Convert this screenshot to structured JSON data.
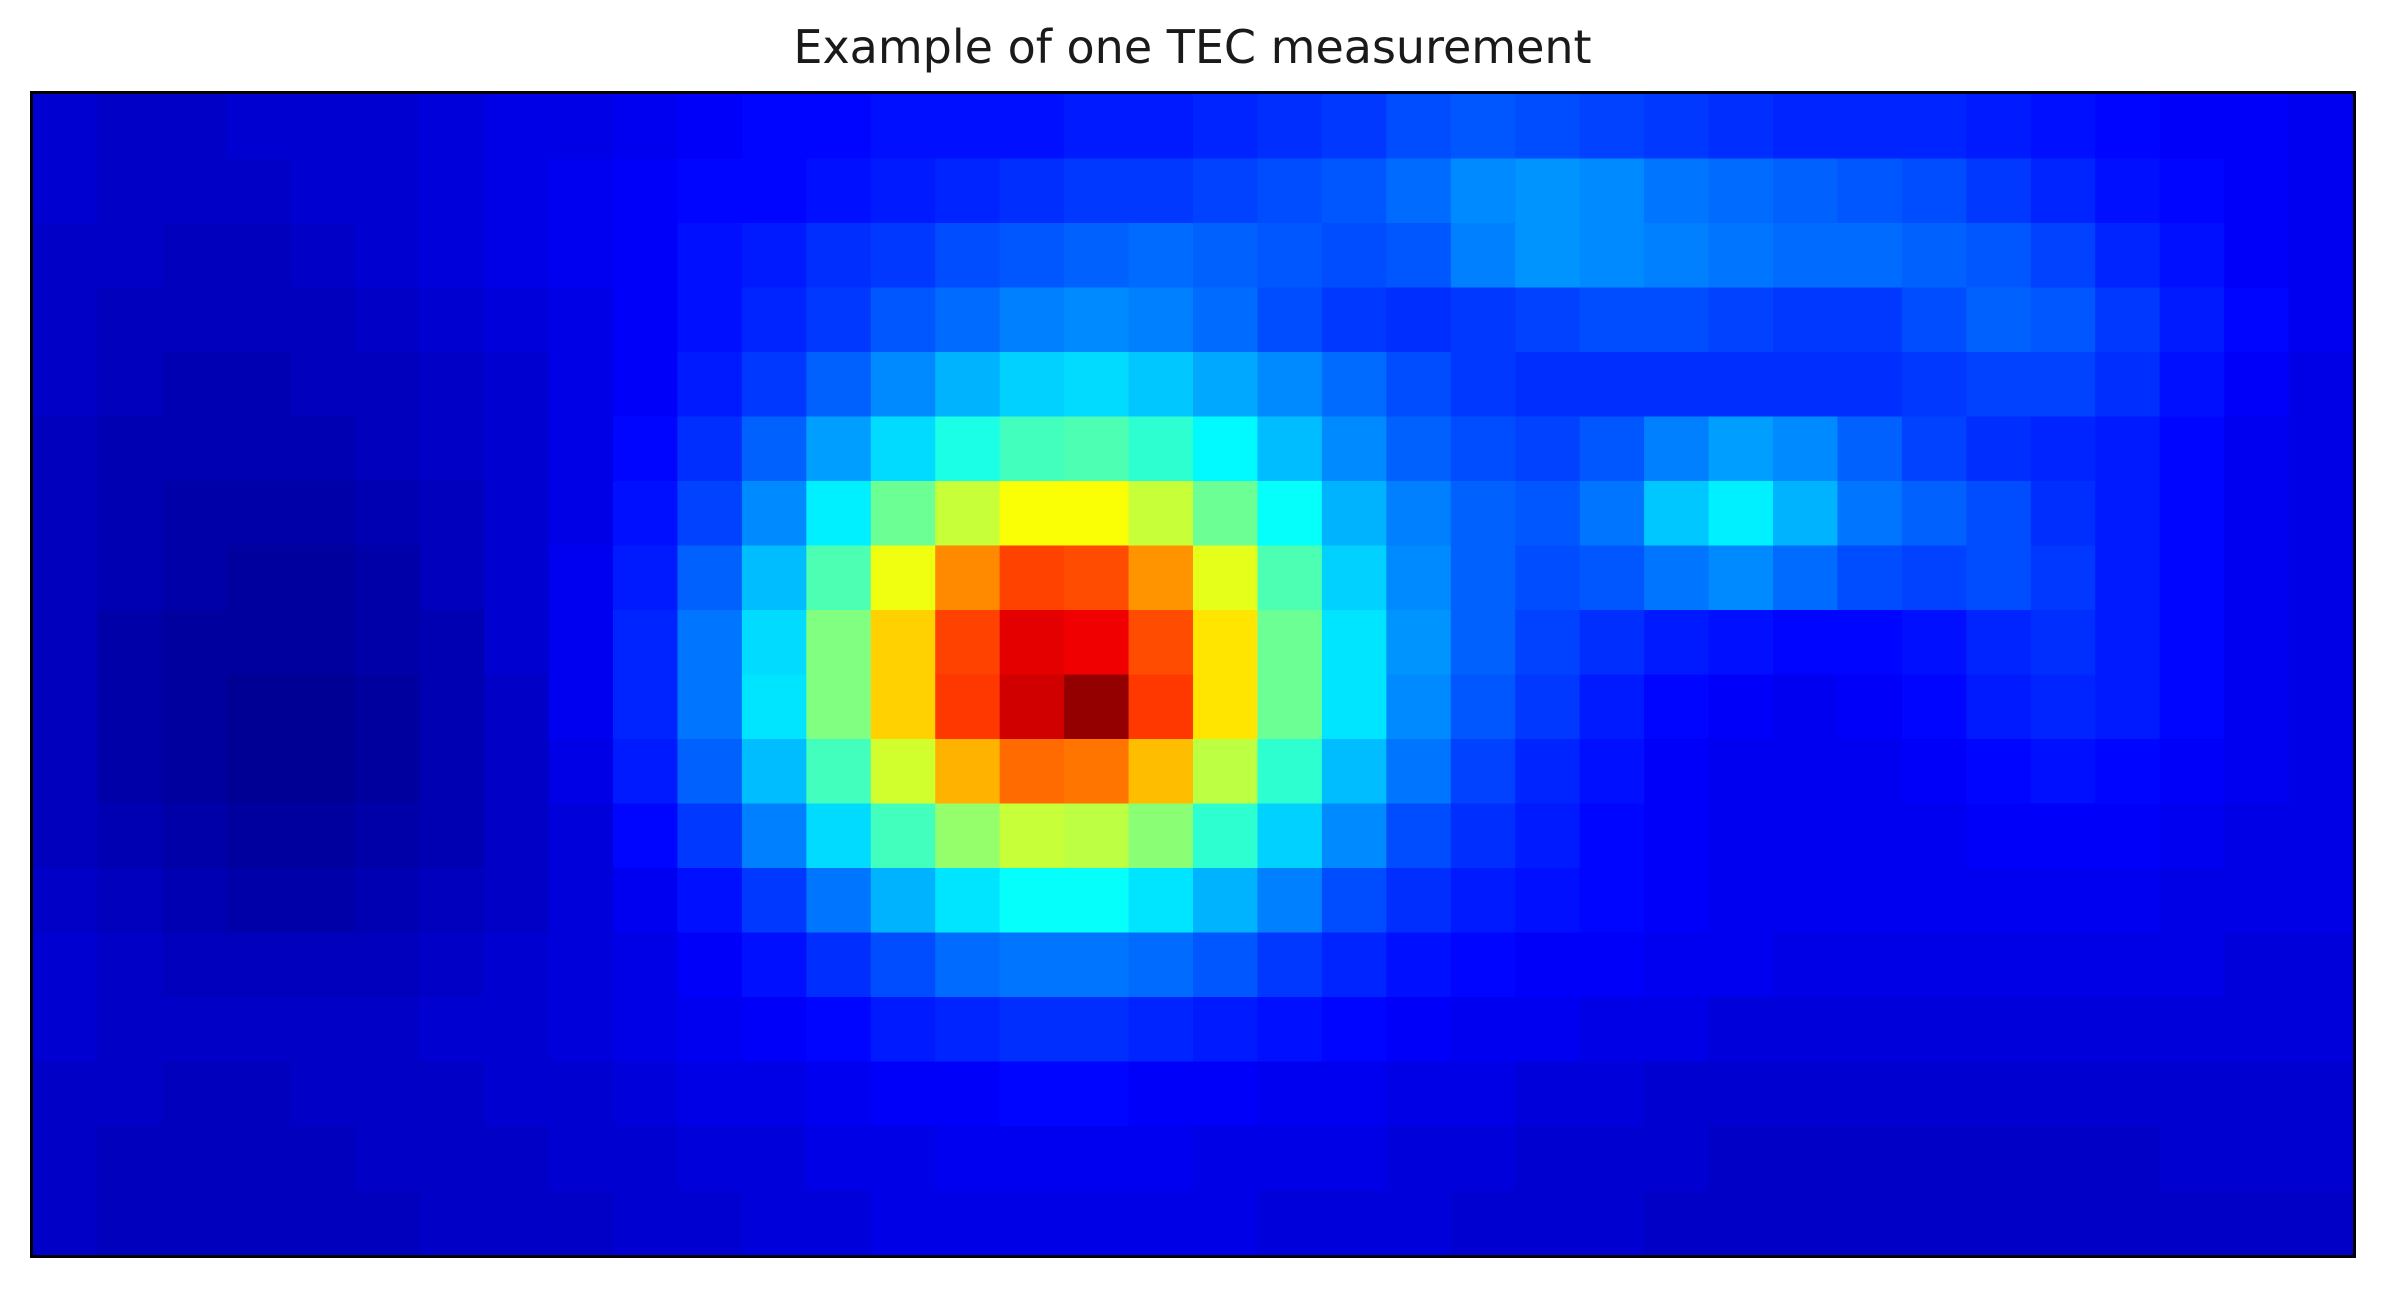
{
  "chart_data": {
    "type": "heatmap",
    "title": "Example of one TEC measurement",
    "xlabel": "",
    "ylabel": "",
    "axes_ticks": "none",
    "colorbar": "none",
    "colormap": "jet",
    "value_range": [
      0,
      1
    ],
    "grid": {
      "cols": 36,
      "rows": 18,
      "cells": [
        [
          0.08,
          0.07,
          0.07,
          0.08,
          0.08,
          0.08,
          0.09,
          0.1,
          0.1,
          0.11,
          0.12,
          0.13,
          0.13,
          0.14,
          0.14,
          0.14,
          0.15,
          0.15,
          0.16,
          0.17,
          0.18,
          0.2,
          0.21,
          0.2,
          0.19,
          0.18,
          0.17,
          0.16,
          0.16,
          0.16,
          0.15,
          0.14,
          0.13,
          0.12,
          0.12,
          0.11
        ],
        [
          0.08,
          0.07,
          0.07,
          0.07,
          0.08,
          0.08,
          0.09,
          0.1,
          0.11,
          0.12,
          0.13,
          0.13,
          0.14,
          0.15,
          0.16,
          0.17,
          0.18,
          0.18,
          0.19,
          0.2,
          0.21,
          0.23,
          0.26,
          0.27,
          0.26,
          0.24,
          0.23,
          0.22,
          0.21,
          0.2,
          0.18,
          0.16,
          0.14,
          0.13,
          0.12,
          0.11
        ],
        [
          0.07,
          0.07,
          0.06,
          0.06,
          0.07,
          0.08,
          0.09,
          0.1,
          0.11,
          0.12,
          0.14,
          0.15,
          0.17,
          0.18,
          0.2,
          0.21,
          0.22,
          0.23,
          0.22,
          0.21,
          0.2,
          0.21,
          0.25,
          0.27,
          0.26,
          0.25,
          0.24,
          0.23,
          0.23,
          0.22,
          0.21,
          0.19,
          0.16,
          0.14,
          0.12,
          0.11
        ],
        [
          0.07,
          0.06,
          0.06,
          0.06,
          0.06,
          0.07,
          0.08,
          0.09,
          0.1,
          0.12,
          0.14,
          0.16,
          0.18,
          0.21,
          0.23,
          0.25,
          0.26,
          0.25,
          0.23,
          0.2,
          0.18,
          0.17,
          0.18,
          0.19,
          0.2,
          0.2,
          0.19,
          0.18,
          0.18,
          0.2,
          0.22,
          0.21,
          0.18,
          0.15,
          0.13,
          0.11
        ],
        [
          0.07,
          0.06,
          0.05,
          0.05,
          0.06,
          0.06,
          0.07,
          0.08,
          0.1,
          0.12,
          0.15,
          0.18,
          0.22,
          0.26,
          0.3,
          0.33,
          0.34,
          0.32,
          0.29,
          0.26,
          0.23,
          0.2,
          0.18,
          0.17,
          0.17,
          0.17,
          0.17,
          0.17,
          0.17,
          0.18,
          0.19,
          0.19,
          0.17,
          0.14,
          0.12,
          0.1
        ],
        [
          0.06,
          0.05,
          0.05,
          0.05,
          0.05,
          0.06,
          0.07,
          0.08,
          0.1,
          0.13,
          0.17,
          0.22,
          0.28,
          0.34,
          0.4,
          0.44,
          0.45,
          0.42,
          0.37,
          0.31,
          0.26,
          0.22,
          0.2,
          0.19,
          0.21,
          0.25,
          0.28,
          0.26,
          0.22,
          0.19,
          0.17,
          0.16,
          0.15,
          0.13,
          0.11,
          0.1
        ],
        [
          0.06,
          0.05,
          0.04,
          0.04,
          0.04,
          0.05,
          0.06,
          0.08,
          0.1,
          0.14,
          0.19,
          0.26,
          0.36,
          0.48,
          0.57,
          0.62,
          0.62,
          0.57,
          0.48,
          0.38,
          0.3,
          0.25,
          0.22,
          0.21,
          0.24,
          0.32,
          0.36,
          0.3,
          0.24,
          0.22,
          0.2,
          0.17,
          0.15,
          0.13,
          0.11,
          0.1
        ],
        [
          0.06,
          0.05,
          0.04,
          0.03,
          0.03,
          0.04,
          0.06,
          0.08,
          0.11,
          0.15,
          0.22,
          0.31,
          0.45,
          0.61,
          0.74,
          0.81,
          0.8,
          0.73,
          0.6,
          0.45,
          0.33,
          0.26,
          0.22,
          0.2,
          0.21,
          0.24,
          0.26,
          0.23,
          0.2,
          0.19,
          0.2,
          0.18,
          0.15,
          0.13,
          0.11,
          0.1
        ],
        [
          0.06,
          0.04,
          0.03,
          0.03,
          0.03,
          0.04,
          0.05,
          0.08,
          0.11,
          0.16,
          0.24,
          0.34,
          0.5,
          0.67,
          0.81,
          0.9,
          0.89,
          0.8,
          0.65,
          0.48,
          0.35,
          0.27,
          0.22,
          0.19,
          0.17,
          0.15,
          0.14,
          0.13,
          0.13,
          0.14,
          0.16,
          0.17,
          0.15,
          0.13,
          0.11,
          0.1
        ],
        [
          0.06,
          0.04,
          0.03,
          0.02,
          0.02,
          0.03,
          0.05,
          0.07,
          0.11,
          0.16,
          0.24,
          0.35,
          0.5,
          0.67,
          0.82,
          0.92,
          0.98,
          0.82,
          0.65,
          0.48,
          0.35,
          0.26,
          0.21,
          0.18,
          0.15,
          0.13,
          0.12,
          0.11,
          0.12,
          0.13,
          0.15,
          0.16,
          0.15,
          0.13,
          0.11,
          0.1
        ],
        [
          0.06,
          0.04,
          0.03,
          0.02,
          0.02,
          0.03,
          0.05,
          0.07,
          0.1,
          0.15,
          0.22,
          0.31,
          0.44,
          0.58,
          0.7,
          0.77,
          0.76,
          0.69,
          0.56,
          0.42,
          0.31,
          0.24,
          0.19,
          0.16,
          0.14,
          0.12,
          0.11,
          0.11,
          0.11,
          0.12,
          0.13,
          0.14,
          0.13,
          0.12,
          0.11,
          0.1
        ],
        [
          0.06,
          0.05,
          0.04,
          0.03,
          0.03,
          0.04,
          0.05,
          0.07,
          0.09,
          0.13,
          0.18,
          0.25,
          0.34,
          0.44,
          0.52,
          0.57,
          0.56,
          0.51,
          0.42,
          0.33,
          0.26,
          0.2,
          0.17,
          0.15,
          0.13,
          0.12,
          0.11,
          0.11,
          0.11,
          0.11,
          0.12,
          0.12,
          0.12,
          0.11,
          0.1,
          0.1
        ],
        [
          0.07,
          0.06,
          0.05,
          0.04,
          0.04,
          0.05,
          0.06,
          0.07,
          0.09,
          0.11,
          0.14,
          0.18,
          0.24,
          0.3,
          0.35,
          0.38,
          0.38,
          0.35,
          0.3,
          0.25,
          0.2,
          0.17,
          0.15,
          0.14,
          0.13,
          0.12,
          0.11,
          0.11,
          0.11,
          0.11,
          0.11,
          0.11,
          0.11,
          0.1,
          0.1,
          0.1
        ],
        [
          0.08,
          0.07,
          0.06,
          0.06,
          0.06,
          0.06,
          0.07,
          0.08,
          0.09,
          0.1,
          0.12,
          0.14,
          0.17,
          0.2,
          0.23,
          0.24,
          0.24,
          0.23,
          0.21,
          0.18,
          0.16,
          0.14,
          0.13,
          0.12,
          0.12,
          0.11,
          0.11,
          0.1,
          0.1,
          0.1,
          0.1,
          0.1,
          0.1,
          0.1,
          0.09,
          0.09
        ],
        [
          0.08,
          0.07,
          0.07,
          0.07,
          0.07,
          0.07,
          0.08,
          0.08,
          0.09,
          0.1,
          0.11,
          0.12,
          0.13,
          0.15,
          0.16,
          0.17,
          0.17,
          0.16,
          0.15,
          0.14,
          0.13,
          0.12,
          0.11,
          0.11,
          0.1,
          0.1,
          0.09,
          0.09,
          0.09,
          0.09,
          0.09,
          0.09,
          0.09,
          0.09,
          0.09,
          0.09
        ],
        [
          0.07,
          0.07,
          0.06,
          0.06,
          0.07,
          0.07,
          0.07,
          0.08,
          0.08,
          0.09,
          0.1,
          0.1,
          0.11,
          0.12,
          0.12,
          0.13,
          0.13,
          0.12,
          0.12,
          0.11,
          0.11,
          0.1,
          0.1,
          0.09,
          0.09,
          0.08,
          0.08,
          0.08,
          0.08,
          0.08,
          0.08,
          0.08,
          0.08,
          0.08,
          0.08,
          0.08
        ],
        [
          0.07,
          0.06,
          0.06,
          0.06,
          0.06,
          0.07,
          0.07,
          0.07,
          0.08,
          0.08,
          0.09,
          0.09,
          0.1,
          0.1,
          0.11,
          0.11,
          0.11,
          0.11,
          0.1,
          0.1,
          0.1,
          0.09,
          0.09,
          0.08,
          0.08,
          0.08,
          0.07,
          0.07,
          0.07,
          0.07,
          0.07,
          0.07,
          0.07,
          0.08,
          0.08,
          0.08
        ],
        [
          0.07,
          0.06,
          0.06,
          0.06,
          0.06,
          0.06,
          0.07,
          0.07,
          0.07,
          0.08,
          0.08,
          0.09,
          0.09,
          0.1,
          0.1,
          0.1,
          0.1,
          0.1,
          0.1,
          0.09,
          0.09,
          0.09,
          0.08,
          0.08,
          0.08,
          0.07,
          0.07,
          0.07,
          0.07,
          0.07,
          0.07,
          0.07,
          0.07,
          0.07,
          0.07,
          0.07
        ]
      ]
    }
  }
}
